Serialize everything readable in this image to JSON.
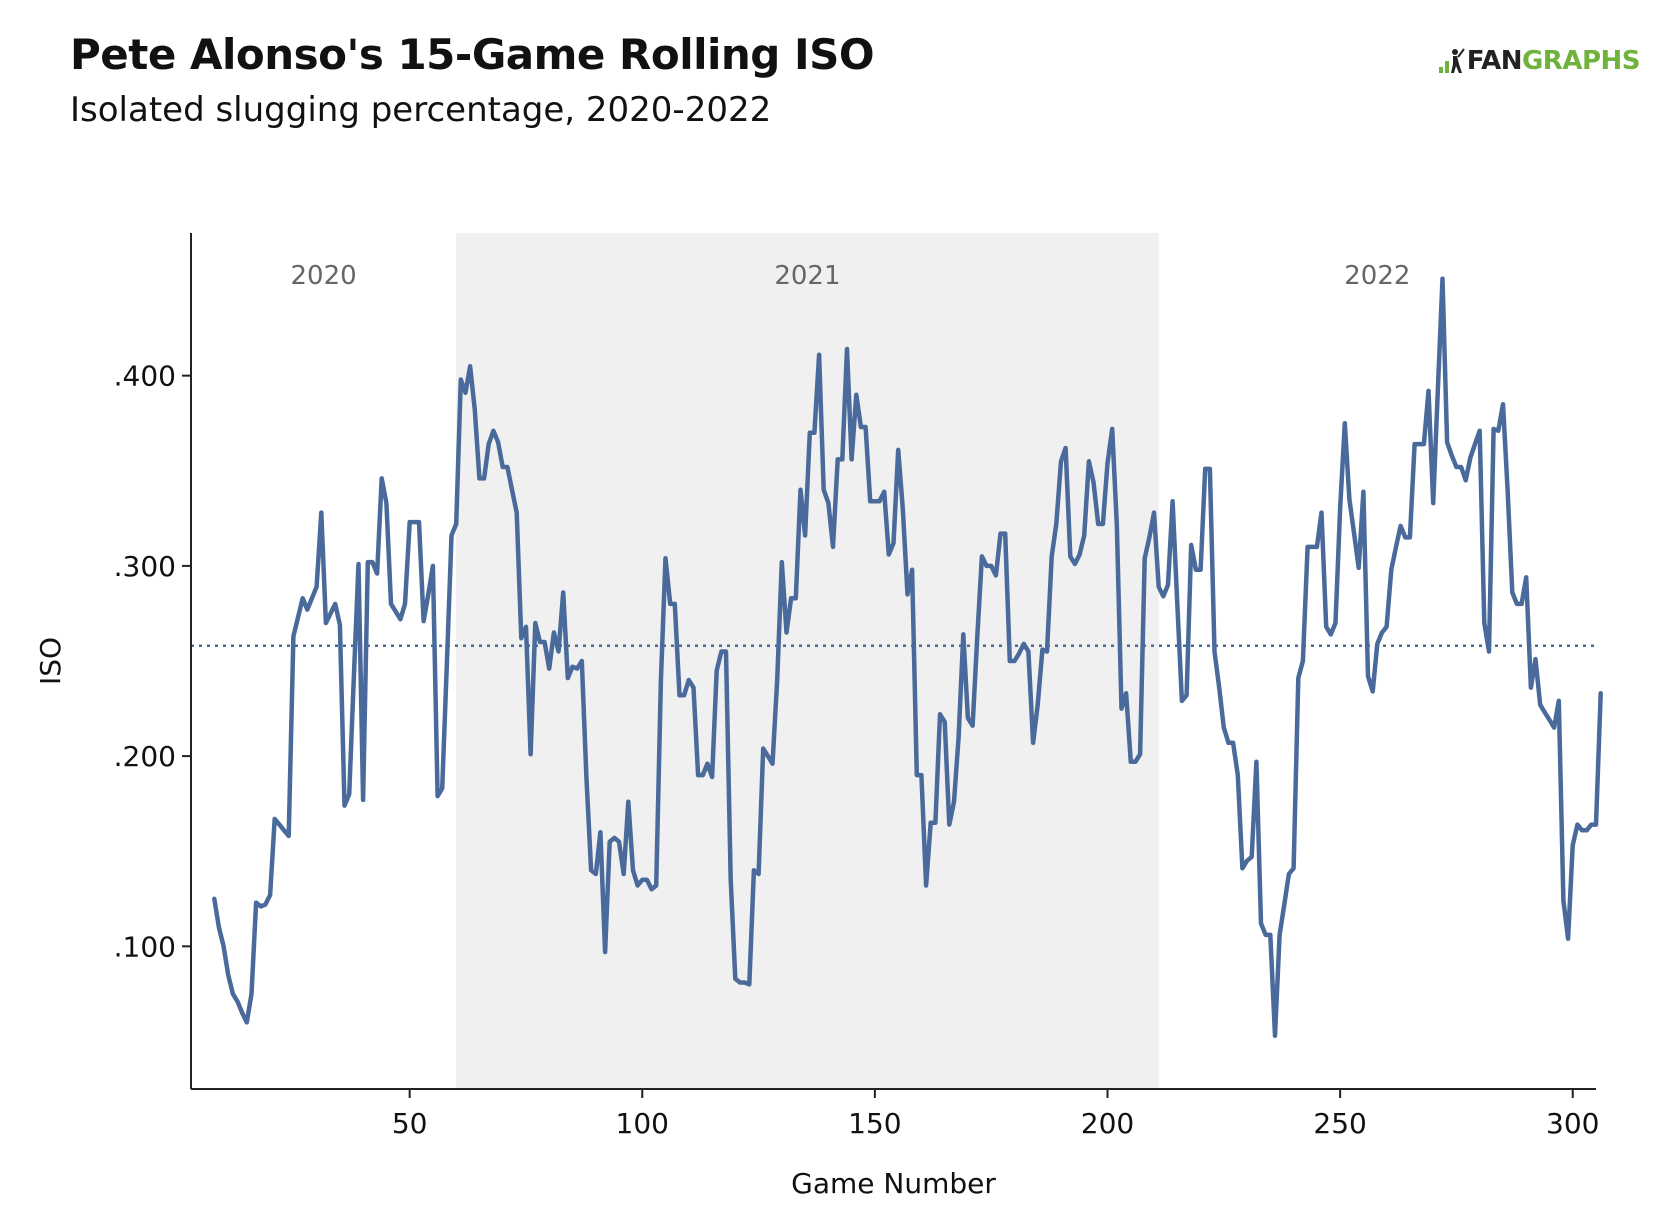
{
  "logo": {
    "prefix": "FAN",
    "suffix": "GRAPHS"
  },
  "chart_data": {
    "type": "line",
    "title": "Pete Alonso's 15-Game Rolling ISO",
    "subtitle": "Isolated slugging percentage, 2020-2022",
    "xlabel": "Game Number",
    "ylabel": "ISO",
    "xlim": [
      3,
      305
    ],
    "ylim": [
      0.025,
      0.475
    ],
    "x_ticks": [
      50,
      100,
      150,
      200,
      250,
      300
    ],
    "x_tick_labels": [
      "50",
      "100",
      "150",
      "200",
      "250",
      "300"
    ],
    "y_ticks": [
      0.1,
      0.2,
      0.3,
      0.4
    ],
    "y_tick_labels": [
      ".100",
      ".200",
      ".300",
      ".400"
    ],
    "grid": false,
    "reference_line": {
      "y": 0.258,
      "style": "dotted"
    },
    "seasons": [
      {
        "label": "2020",
        "start": 3,
        "end": 60,
        "shaded": false
      },
      {
        "label": "2021",
        "start": 60,
        "end": 211,
        "shaded": true
      },
      {
        "label": "2022",
        "start": 211,
        "end": 305,
        "shaded": false
      }
    ],
    "colors": {
      "line": "#4a6a9b",
      "shade": "#f0f0f0",
      "axis": "#222222"
    },
    "series": [
      {
        "points": [
          [
            8,
            0.125
          ],
          [
            9,
            0.11
          ],
          [
            10,
            0.1
          ],
          [
            11,
            0.085
          ],
          [
            12,
            0.075
          ],
          [
            13,
            0.071
          ],
          [
            14,
            0.065
          ],
          [
            15,
            0.06
          ],
          [
            16,
            0.075
          ],
          [
            17,
            0.123
          ],
          [
            18,
            0.121
          ],
          [
            19,
            0.122
          ],
          [
            20,
            0.127
          ],
          [
            21,
            0.167
          ],
          [
            22,
            0.164
          ],
          [
            23,
            0.161
          ],
          [
            24,
            0.158
          ],
          [
            25,
            0.263
          ],
          [
            27,
            0.283
          ],
          [
            28,
            0.277
          ],
          [
            30,
            0.289
          ],
          [
            31,
            0.328
          ],
          [
            32,
            0.27
          ],
          [
            34,
            0.28
          ],
          [
            35,
            0.269
          ],
          [
            36,
            0.174
          ],
          [
            37,
            0.18
          ],
          [
            38,
            0.241
          ],
          [
            39,
            0.301
          ],
          [
            40,
            0.177
          ],
          [
            41,
            0.302
          ],
          [
            42,
            0.302
          ],
          [
            43,
            0.296
          ],
          [
            44,
            0.346
          ],
          [
            45,
            0.333
          ],
          [
            46,
            0.28
          ],
          [
            48,
            0.272
          ],
          [
            49,
            0.28
          ],
          [
            50,
            0.323
          ],
          [
            51,
            0.323
          ],
          [
            52,
            0.323
          ],
          [
            53,
            0.271
          ],
          [
            54,
            0.285
          ],
          [
            55,
            0.3
          ],
          [
            56,
            0.179
          ],
          [
            57,
            0.183
          ],
          [
            58,
            0.249
          ],
          [
            59,
            0.316
          ],
          [
            60,
            0.322
          ],
          [
            61,
            0.398
          ],
          [
            62,
            0.391
          ],
          [
            63,
            0.405
          ],
          [
            64,
            0.382
          ],
          [
            65,
            0.346
          ],
          [
            66,
            0.346
          ],
          [
            67,
            0.364
          ],
          [
            68,
            0.371
          ],
          [
            69,
            0.365
          ],
          [
            70,
            0.352
          ],
          [
            71,
            0.352
          ],
          [
            72,
            0.34
          ],
          [
            73,
            0.328
          ],
          [
            74,
            0.262
          ],
          [
            75,
            0.268
          ],
          [
            76,
            0.201
          ],
          [
            77,
            0.27
          ],
          [
            78,
            0.26
          ],
          [
            79,
            0.26
          ],
          [
            80,
            0.246
          ],
          [
            81,
            0.265
          ],
          [
            82,
            0.255
          ],
          [
            83,
            0.286
          ],
          [
            84,
            0.241
          ],
          [
            85,
            0.247
          ],
          [
            86,
            0.246
          ],
          [
            87,
            0.25
          ],
          [
            88,
            0.189
          ],
          [
            89,
            0.14
          ],
          [
            90,
            0.138
          ],
          [
            91,
            0.16
          ],
          [
            92,
            0.097
          ],
          [
            93,
            0.155
          ],
          [
            94,
            0.157
          ],
          [
            95,
            0.155
          ],
          [
            96,
            0.138
          ],
          [
            97,
            0.176
          ],
          [
            98,
            0.14
          ],
          [
            99,
            0.132
          ],
          [
            100,
            0.135
          ],
          [
            101,
            0.135
          ],
          [
            102,
            0.13
          ],
          [
            103,
            0.132
          ],
          [
            104,
            0.24
          ],
          [
            105,
            0.304
          ],
          [
            106,
            0.28
          ],
          [
            107,
            0.28
          ],
          [
            108,
            0.232
          ],
          [
            109,
            0.232
          ],
          [
            110,
            0.24
          ],
          [
            111,
            0.236
          ],
          [
            112,
            0.19
          ],
          [
            113,
            0.19
          ],
          [
            114,
            0.196
          ],
          [
            115,
            0.189
          ],
          [
            116,
            0.245
          ],
          [
            117,
            0.255
          ],
          [
            118,
            0.255
          ],
          [
            119,
            0.135
          ],
          [
            120,
            0.083
          ],
          [
            121,
            0.081
          ],
          [
            122,
            0.081
          ],
          [
            123,
            0.08
          ],
          [
            124,
            0.14
          ],
          [
            125,
            0.138
          ],
          [
            126,
            0.204
          ],
          [
            127,
            0.2
          ],
          [
            128,
            0.196
          ],
          [
            129,
            0.24
          ],
          [
            130,
            0.302
          ],
          [
            131,
            0.265
          ],
          [
            132,
            0.283
          ],
          [
            133,
            0.283
          ],
          [
            134,
            0.34
          ],
          [
            135,
            0.316
          ],
          [
            136,
            0.37
          ],
          [
            137,
            0.37
          ],
          [
            138,
            0.411
          ],
          [
            139,
            0.34
          ],
          [
            140,
            0.333
          ],
          [
            141,
            0.31
          ],
          [
            142,
            0.356
          ],
          [
            143,
            0.356
          ],
          [
            144,
            0.414
          ],
          [
            145,
            0.356
          ],
          [
            146,
            0.39
          ],
          [
            147,
            0.373
          ],
          [
            148,
            0.373
          ],
          [
            149,
            0.334
          ],
          [
            150,
            0.334
          ],
          [
            151,
            0.334
          ],
          [
            152,
            0.339
          ],
          [
            153,
            0.306
          ],
          [
            154,
            0.312
          ],
          [
            155,
            0.361
          ],
          [
            156,
            0.33
          ],
          [
            157,
            0.285
          ],
          [
            158,
            0.298
          ],
          [
            159,
            0.19
          ],
          [
            160,
            0.19
          ],
          [
            161,
            0.132
          ],
          [
            162,
            0.165
          ],
          [
            163,
            0.165
          ],
          [
            164,
            0.222
          ],
          [
            165,
            0.218
          ],
          [
            166,
            0.164
          ],
          [
            167,
            0.176
          ],
          [
            168,
            0.21
          ],
          [
            169,
            0.264
          ],
          [
            170,
            0.22
          ],
          [
            171,
            0.216
          ],
          [
            172,
            0.262
          ],
          [
            173,
            0.305
          ],
          [
            174,
            0.3
          ],
          [
            175,
            0.3
          ],
          [
            176,
            0.295
          ],
          [
            177,
            0.317
          ],
          [
            178,
            0.317
          ],
          [
            179,
            0.25
          ],
          [
            180,
            0.25
          ],
          [
            181,
            0.254
          ],
          [
            182,
            0.259
          ],
          [
            183,
            0.255
          ],
          [
            184,
            0.207
          ],
          [
            185,
            0.227
          ],
          [
            186,
            0.256
          ],
          [
            187,
            0.255
          ],
          [
            188,
            0.305
          ],
          [
            189,
            0.322
          ],
          [
            190,
            0.355
          ],
          [
            191,
            0.362
          ],
          [
            192,
            0.305
          ],
          [
            193,
            0.301
          ],
          [
            194,
            0.306
          ],
          [
            195,
            0.316
          ],
          [
            196,
            0.355
          ],
          [
            197,
            0.344
          ],
          [
            198,
            0.322
          ],
          [
            199,
            0.322
          ],
          [
            200,
            0.354
          ],
          [
            201,
            0.372
          ],
          [
            202,
            0.322
          ],
          [
            203,
            0.225
          ],
          [
            204,
            0.233
          ],
          [
            205,
            0.197
          ],
          [
            206,
            0.197
          ],
          [
            207,
            0.201
          ],
          [
            208,
            0.304
          ],
          [
            209,
            0.315
          ],
          [
            210,
            0.328
          ],
          [
            211,
            0.289
          ],
          [
            212,
            0.284
          ],
          [
            213,
            0.29
          ],
          [
            214,
            0.334
          ],
          [
            215,
            0.28
          ],
          [
            216,
            0.229
          ],
          [
            217,
            0.232
          ],
          [
            218,
            0.311
          ],
          [
            219,
            0.298
          ],
          [
            220,
            0.298
          ],
          [
            221,
            0.351
          ],
          [
            222,
            0.351
          ],
          [
            223,
            0.255
          ],
          [
            224,
            0.236
          ],
          [
            225,
            0.215
          ],
          [
            226,
            0.207
          ],
          [
            227,
            0.207
          ],
          [
            228,
            0.19
          ],
          [
            229,
            0.141
          ],
          [
            230,
            0.145
          ],
          [
            231,
            0.147
          ],
          [
            232,
            0.197
          ],
          [
            233,
            0.112
          ],
          [
            234,
            0.106
          ],
          [
            235,
            0.106
          ],
          [
            236,
            0.053
          ],
          [
            237,
            0.106
          ],
          [
            238,
            0.122
          ],
          [
            239,
            0.138
          ],
          [
            240,
            0.141
          ],
          [
            241,
            0.241
          ],
          [
            242,
            0.25
          ],
          [
            243,
            0.31
          ],
          [
            244,
            0.31
          ],
          [
            245,
            0.31
          ],
          [
            246,
            0.328
          ],
          [
            247,
            0.268
          ],
          [
            248,
            0.264
          ],
          [
            249,
            0.27
          ],
          [
            250,
            0.33
          ],
          [
            251,
            0.375
          ],
          [
            252,
            0.335
          ],
          [
            253,
            0.317
          ],
          [
            254,
            0.299
          ],
          [
            255,
            0.339
          ],
          [
            256,
            0.242
          ],
          [
            257,
            0.234
          ],
          [
            258,
            0.259
          ],
          [
            259,
            0.265
          ],
          [
            260,
            0.268
          ],
          [
            261,
            0.298
          ],
          [
            262,
            0.31
          ],
          [
            263,
            0.321
          ],
          [
            264,
            0.315
          ],
          [
            265,
            0.315
          ],
          [
            266,
            0.364
          ],
          [
            267,
            0.364
          ],
          [
            268,
            0.364
          ],
          [
            269,
            0.392
          ],
          [
            270,
            0.333
          ],
          [
            271,
            0.392
          ],
          [
            272,
            0.451
          ],
          [
            273,
            0.365
          ],
          [
            274,
            0.358
          ],
          [
            275,
            0.352
          ],
          [
            276,
            0.352
          ],
          [
            277,
            0.345
          ],
          [
            278,
            0.357
          ],
          [
            279,
            0.364
          ],
          [
            280,
            0.371
          ],
          [
            281,
            0.27
          ],
          [
            282,
            0.255
          ],
          [
            283,
            0.372
          ],
          [
            284,
            0.371
          ],
          [
            285,
            0.385
          ],
          [
            286,
            0.34
          ],
          [
            287,
            0.286
          ],
          [
            288,
            0.28
          ],
          [
            289,
            0.28
          ],
          [
            290,
            0.294
          ],
          [
            291,
            0.236
          ],
          [
            292,
            0.251
          ],
          [
            293,
            0.227
          ],
          [
            294,
            0.223
          ],
          [
            295,
            0.219
          ],
          [
            296,
            0.215
          ],
          [
            297,
            0.229
          ],
          [
            298,
            0.124
          ],
          [
            299,
            0.104
          ],
          [
            300,
            0.153
          ],
          [
            301,
            0.164
          ],
          [
            302,
            0.161
          ],
          [
            303,
            0.161
          ],
          [
            304,
            0.164
          ],
          [
            305,
            0.164
          ],
          [
            306,
            0.233
          ]
        ]
      }
    ]
  }
}
